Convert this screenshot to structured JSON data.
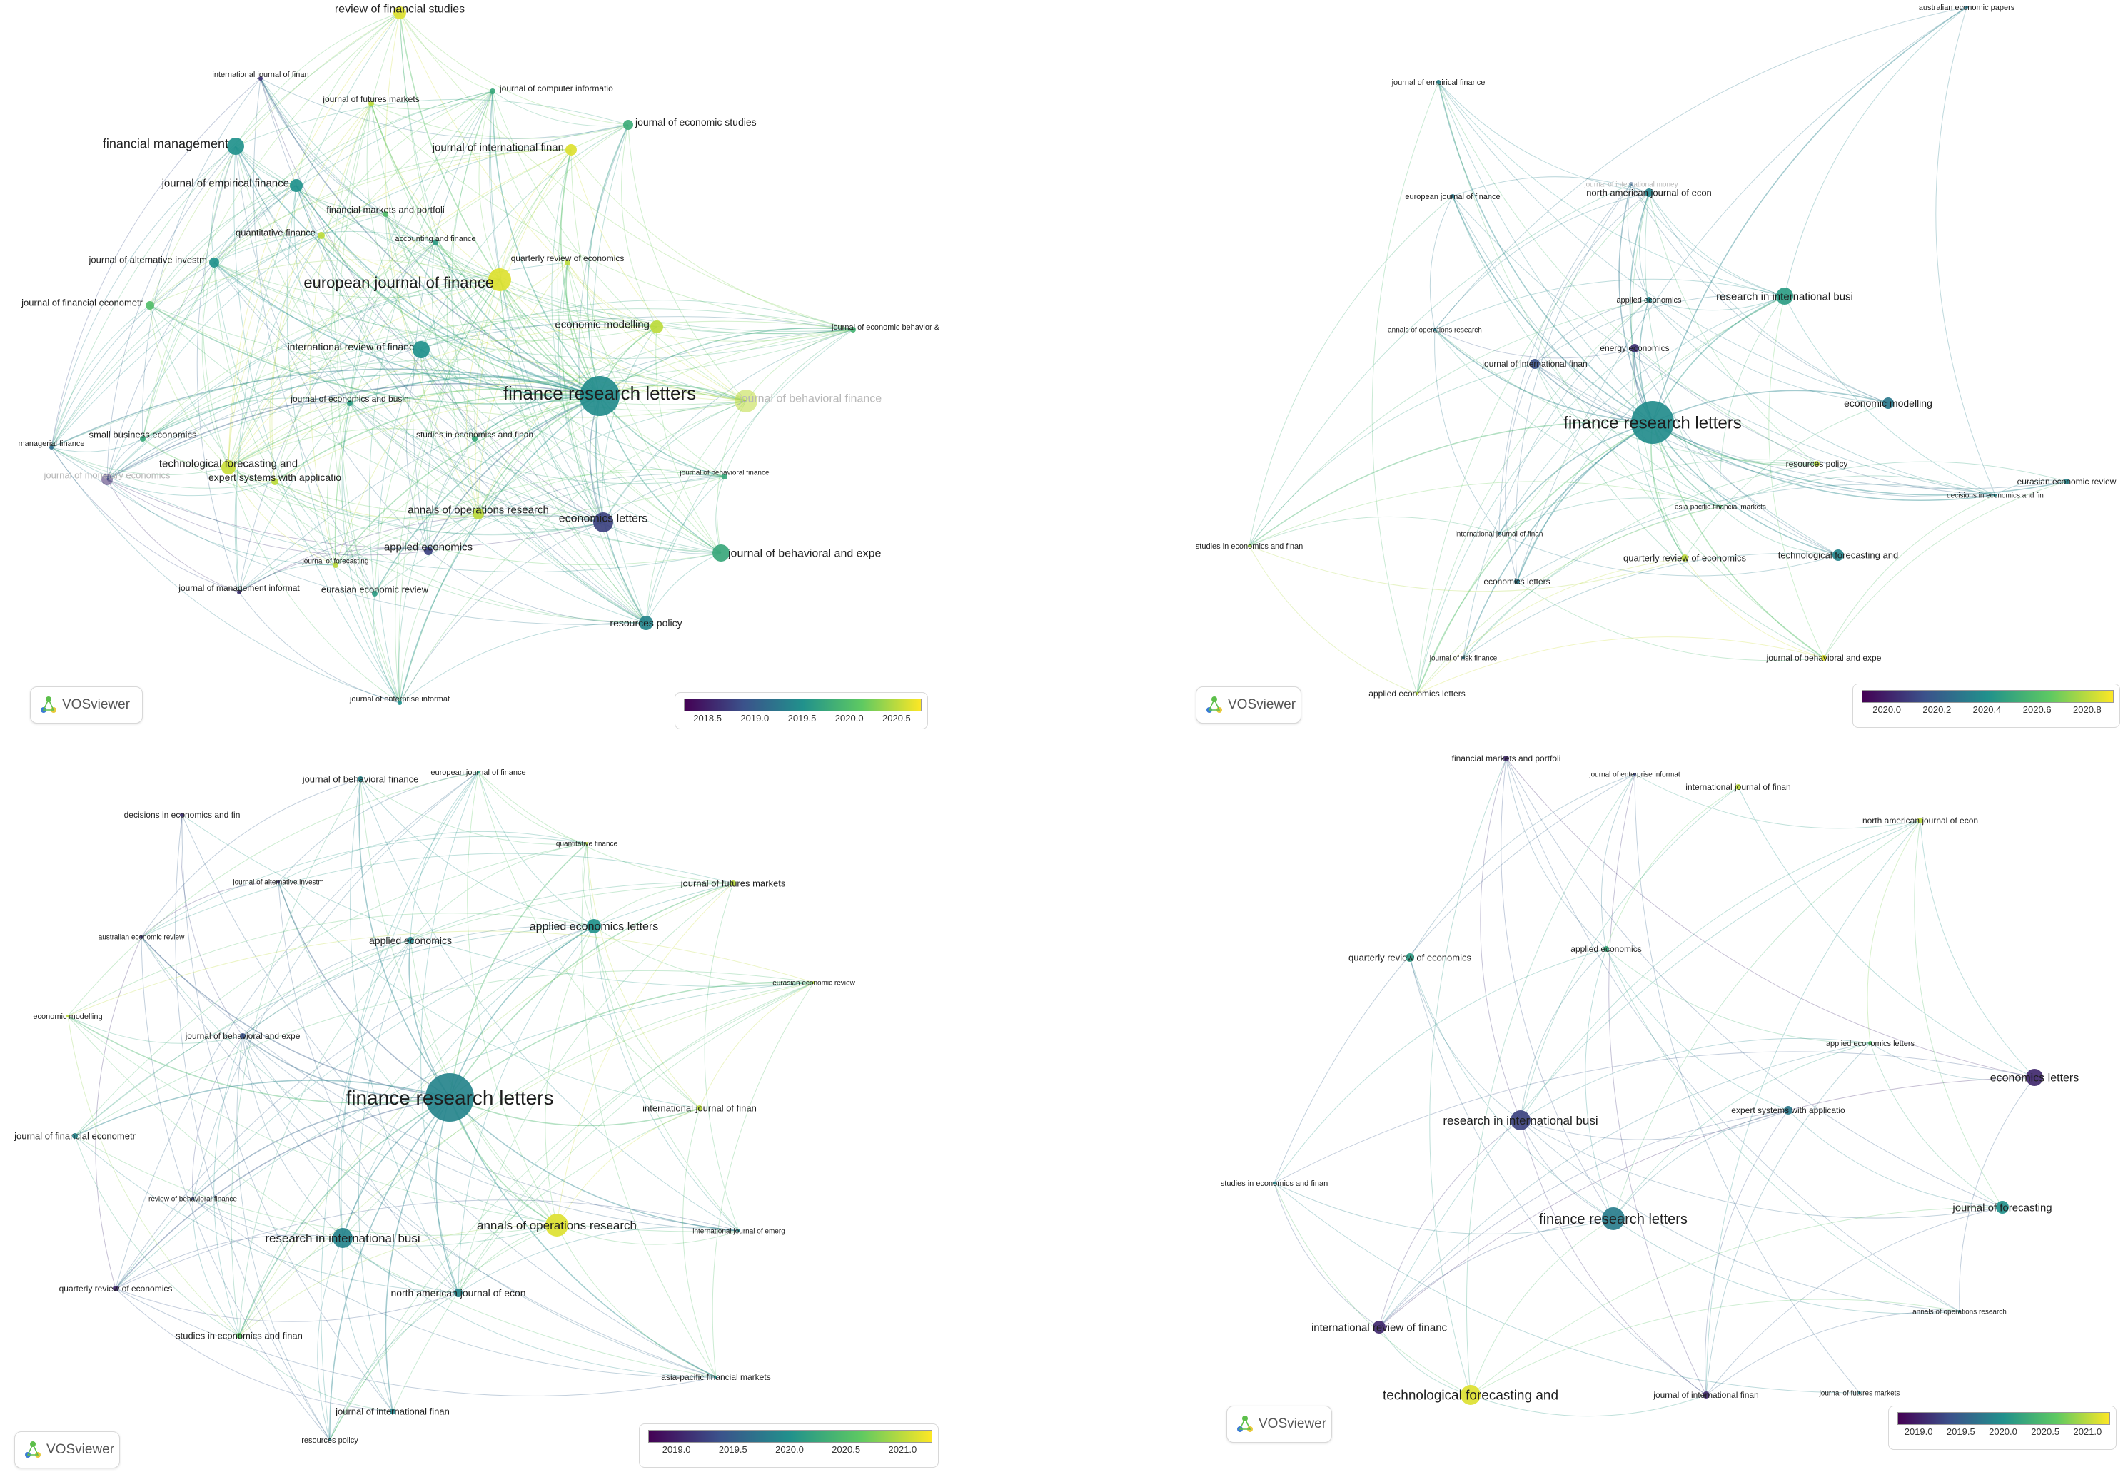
{
  "panels": [
    {
      "id": "p1",
      "colorbar_ticks": [
        "2018.5",
        "2019.0",
        "2019.5",
        "2020.0",
        "2020.5"
      ],
      "logo_text": "VOSviewer",
      "nodes": [
        {
          "label": "review of financial studies",
          "tone": 0.95,
          "r": 9
        },
        {
          "label": "international journal of finan",
          "tone": 0.15,
          "r": 3
        },
        {
          "label": "journal of futures markets",
          "tone": 0.9,
          "r": 4
        },
        {
          "label": "journal of computer informatio",
          "tone": 0.6,
          "r": 4
        },
        {
          "label": "journal of economic studies",
          "tone": 0.62,
          "r": 7
        },
        {
          "label": "financial management",
          "tone": 0.5,
          "r": 12
        },
        {
          "label": "journal of international finan",
          "tone": 0.95,
          "r": 8
        },
        {
          "label": "journal of empirical finance",
          "tone": 0.5,
          "r": 9
        },
        {
          "label": "financial markets and portfoli",
          "tone": 0.7,
          "r": 4
        },
        {
          "label": "quantitative finance",
          "tone": 0.9,
          "r": 5
        },
        {
          "label": "accounting and finance",
          "tone": 0.55,
          "r": 4
        },
        {
          "label": "quarterly review of economics",
          "tone": 0.9,
          "r": 4
        },
        {
          "label": "journal of alternative investm",
          "tone": 0.5,
          "r": 7
        },
        {
          "label": "european journal of finance",
          "tone": 0.95,
          "r": 16
        },
        {
          "label": "journal of financial econometr",
          "tone": 0.7,
          "r": 6
        },
        {
          "label": "economic modelling",
          "tone": 0.9,
          "r": 9
        },
        {
          "label": "journal of economic behavior &",
          "tone": 0.65,
          "r": 4
        },
        {
          "label": "international review of financ",
          "tone": 0.5,
          "r": 12
        },
        {
          "label": "journal of behavioral finance",
          "tone": 0.9,
          "r": 16,
          "faint": true
        },
        {
          "label": "finance research letters",
          "tone": 0.48,
          "r": 28
        },
        {
          "label": "journal of economics and busin",
          "tone": 0.55,
          "r": 4
        },
        {
          "label": "managerial finance",
          "tone": 0.35,
          "r": 3
        },
        {
          "label": "small business economics",
          "tone": 0.6,
          "r": 4
        },
        {
          "label": "studies in economics and finan",
          "tone": 0.6,
          "r": 4
        },
        {
          "label": "journal of monetary economics",
          "tone": 0.12,
          "r": 8,
          "faint": true
        },
        {
          "label": "technological forecasting and",
          "tone": 0.92,
          "r": 10
        },
        {
          "label": "expert systems with applicatio",
          "tone": 0.9,
          "r": 5
        },
        {
          "label": "journal of behavioral finance",
          "tone": 0.6,
          "r": 4
        },
        {
          "label": "annals of operations research",
          "tone": 0.9,
          "r": 8
        },
        {
          "label": "economics letters",
          "tone": 0.2,
          "r": 14
        },
        {
          "label": "applied economics",
          "tone": 0.2,
          "r": 6
        },
        {
          "label": "journal of behavioral and expe",
          "tone": 0.6,
          "r": 12
        },
        {
          "label": "journal of forecasting",
          "tone": 0.9,
          "r": 4
        },
        {
          "label": "journal of management informat",
          "tone": 0.15,
          "r": 3
        },
        {
          "label": "eurasian economic review",
          "tone": 0.55,
          "r": 4
        },
        {
          "label": "resources policy",
          "tone": 0.45,
          "r": 10
        },
        {
          "label": "journal of enterprise informat",
          "tone": 0.5,
          "r": 3
        }
      ]
    },
    {
      "id": "p2",
      "colorbar_ticks": [
        "2020.0",
        "2020.2",
        "2020.4",
        "2020.6",
        "2020.8"
      ],
      "logo_text": "VOSviewer",
      "nodes": [
        {
          "label": "australian economic papers",
          "tone": 0.4,
          "r": 2
        },
        {
          "label": "journal of empirical finance",
          "tone": 0.45,
          "r": 3
        },
        {
          "label": "journal of international money",
          "tone": 0.3,
          "r": 3,
          "faint": true
        },
        {
          "label": "north american journal of econ",
          "tone": 0.45,
          "r": 6
        },
        {
          "label": "european journal of finance",
          "tone": 0.4,
          "r": 3
        },
        {
          "label": "applied economics",
          "tone": 0.45,
          "r": 4
        },
        {
          "label": "research in international busi",
          "tone": 0.55,
          "r": 12
        },
        {
          "label": "annals of operations research",
          "tone": 0.4,
          "r": 2
        },
        {
          "label": "energy economics",
          "tone": 0.15,
          "r": 6
        },
        {
          "label": "journal of international finan",
          "tone": 0.25,
          "r": 7
        },
        {
          "label": "economic modelling",
          "tone": 0.4,
          "r": 8
        },
        {
          "label": "finance research letters",
          "tone": 0.48,
          "r": 30
        },
        {
          "label": "resources policy",
          "tone": 0.9,
          "r": 4
        },
        {
          "label": "eurasian economic review",
          "tone": 0.45,
          "r": 4
        },
        {
          "label": "decisions in economics and fin",
          "tone": 0.45,
          "r": 2
        },
        {
          "label": "asia-pacific financial markets",
          "tone": 0.7,
          "r": 2
        },
        {
          "label": "international journal of finan",
          "tone": 0.4,
          "r": 2
        },
        {
          "label": "studies in economics and finan",
          "tone": 0.85,
          "r": 2
        },
        {
          "label": "quarterly review of economics",
          "tone": 0.9,
          "r": 5
        },
        {
          "label": "technological forecasting and",
          "tone": 0.45,
          "r": 8
        },
        {
          "label": "economics letters",
          "tone": 0.4,
          "r": 4
        },
        {
          "label": "journal of risk finance",
          "tone": 0.4,
          "r": 2
        },
        {
          "label": "journal of behavioral and expe",
          "tone": 0.95,
          "r": 4
        },
        {
          "label": "applied economics letters",
          "tone": 0.9,
          "r": 2
        }
      ]
    },
    {
      "id": "p3",
      "colorbar_ticks": [
        "2019.0",
        "2019.5",
        "2020.0",
        "2020.5",
        "2021.0"
      ],
      "logo_text": "VOSviewer",
      "nodes": [
        {
          "label": "journal of behavioral finance",
          "tone": 0.45,
          "r": 4
        },
        {
          "label": "european journal of finance",
          "tone": 0.55,
          "r": 2
        },
        {
          "label": "decisions in economics and fin",
          "tone": 0.15,
          "r": 3
        },
        {
          "label": "quantitative finance",
          "tone": 0.9,
          "r": 2
        },
        {
          "label": "journal of alternative investm",
          "tone": 0.15,
          "r": 2
        },
        {
          "label": "journal of futures markets",
          "tone": 0.9,
          "r": 4
        },
        {
          "label": "australian economic review",
          "tone": 0.15,
          "r": 2
        },
        {
          "label": "applied economics",
          "tone": 0.45,
          "r": 5
        },
        {
          "label": "applied economics letters",
          "tone": 0.5,
          "r": 10
        },
        {
          "label": "eurasian economic review",
          "tone": 0.9,
          "r": 2
        },
        {
          "label": "economic modelling",
          "tone": 0.9,
          "r": 2
        },
        {
          "label": "journal of behavioral and expe",
          "tone": 0.25,
          "r": 4
        },
        {
          "label": "finance research letters",
          "tone": 0.45,
          "r": 34
        },
        {
          "label": "journal of financial econometr",
          "tone": 0.45,
          "r": 4
        },
        {
          "label": "international journal of finan",
          "tone": 0.9,
          "r": 4
        },
        {
          "label": "review of behavioral finance",
          "tone": 0.2,
          "r": 2
        },
        {
          "label": "annals of operations research",
          "tone": 0.95,
          "r": 16
        },
        {
          "label": "research in international busi",
          "tone": 0.45,
          "r": 14
        },
        {
          "label": "international journal of emerg",
          "tone": 0.45,
          "r": 2
        },
        {
          "label": "quarterly review of economics",
          "tone": 0.12,
          "r": 4
        },
        {
          "label": "north american journal of econ",
          "tone": 0.45,
          "r": 6
        },
        {
          "label": "studies in economics and finan",
          "tone": 0.75,
          "r": 4
        },
        {
          "label": "asia-pacific financial markets",
          "tone": 0.5,
          "r": 2
        },
        {
          "label": "journal of international finan",
          "tone": 0.45,
          "r": 4
        },
        {
          "label": "resources policy",
          "tone": 0.45,
          "r": 2
        }
      ]
    },
    {
      "id": "p4",
      "colorbar_ticks": [
        "2019.0",
        "2019.5",
        "2020.0",
        "2020.5",
        "2021.0"
      ],
      "logo_text": "VOSviewer",
      "nodes": [
        {
          "label": "financial markets and portfoli",
          "tone": 0.12,
          "r": 4
        },
        {
          "label": "journal of enterprise informat",
          "tone": 0.2,
          "r": 2
        },
        {
          "label": "international journal of finan",
          "tone": 0.9,
          "r": 4
        },
        {
          "label": "north american journal of econ",
          "tone": 0.9,
          "r": 4
        },
        {
          "label": "quarterly review of economics",
          "tone": 0.55,
          "r": 6
        },
        {
          "label": "applied economics",
          "tone": 0.6,
          "r": 4
        },
        {
          "label": "applied economics letters",
          "tone": 0.7,
          "r": 3
        },
        {
          "label": "economics letters",
          "tone": 0.12,
          "r": 12
        },
        {
          "label": "research in international busi",
          "tone": 0.2,
          "r": 14
        },
        {
          "label": "expert systems with applicatio",
          "tone": 0.4,
          "r": 6
        },
        {
          "label": "studies in economics and finan",
          "tone": 0.45,
          "r": 2
        },
        {
          "label": "journal of forecasting",
          "tone": 0.5,
          "r": 9
        },
        {
          "label": "finance research letters",
          "tone": 0.42,
          "r": 16
        },
        {
          "label": "annals of operations research",
          "tone": 0.5,
          "r": 2
        },
        {
          "label": "international review of financ",
          "tone": 0.12,
          "r": 9
        },
        {
          "label": "technological forecasting and",
          "tone": 0.95,
          "r": 14
        },
        {
          "label": "journal of international finan",
          "tone": 0.12,
          "r": 5
        },
        {
          "label": "journal of futures markets",
          "tone": 0.45,
          "r": 2
        }
      ]
    }
  ]
}
